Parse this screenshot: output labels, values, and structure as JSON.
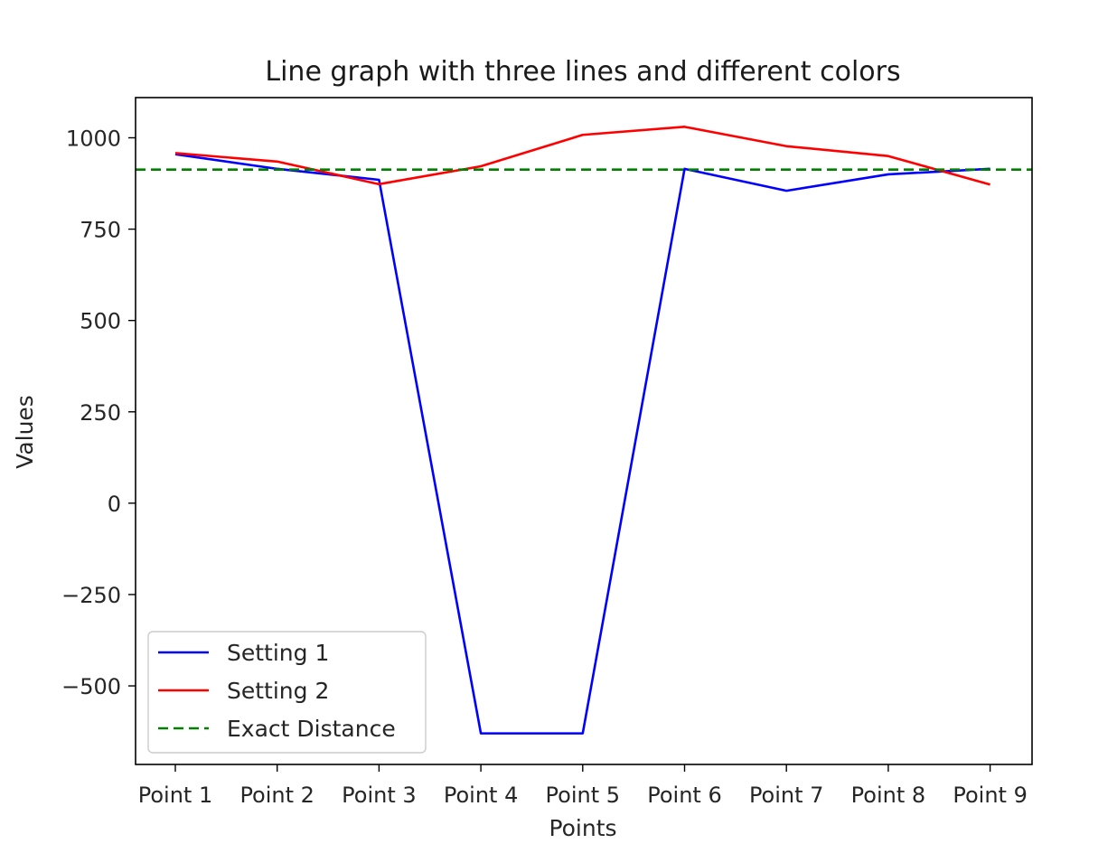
{
  "chart_data": {
    "type": "line",
    "title": "Line graph with three lines and different colors",
    "xlabel": "Points",
    "ylabel": "Values",
    "categories": [
      "Point 1",
      "Point 2",
      "Point 3",
      "Point 4",
      "Point 5",
      "Point 6",
      "Point 7",
      "Point 8",
      "Point 9"
    ],
    "ylim": [
      -715,
      1110
    ],
    "yticks": [
      1000,
      750,
      500,
      250,
      0,
      -250,
      -500
    ],
    "ytick_labels": [
      "1000",
      "750",
      "500",
      "250",
      "0",
      "−250",
      "−500"
    ],
    "series": [
      {
        "name": "Setting 1",
        "color": "#0000ff",
        "style": "solid",
        "values": [
          955,
          915,
          885,
          -630,
          -630,
          915,
          855,
          900,
          915
        ]
      },
      {
        "name": "Setting 2",
        "color": "#ff0000",
        "style": "solid",
        "values": [
          958,
          935,
          873,
          922,
          1008,
          1030,
          977,
          950,
          872
        ]
      },
      {
        "name": "Exact Distance",
        "color": "#008000",
        "style": "dashed",
        "hline": 913
      }
    ],
    "legend_position": "lower-left",
    "grid": false
  }
}
